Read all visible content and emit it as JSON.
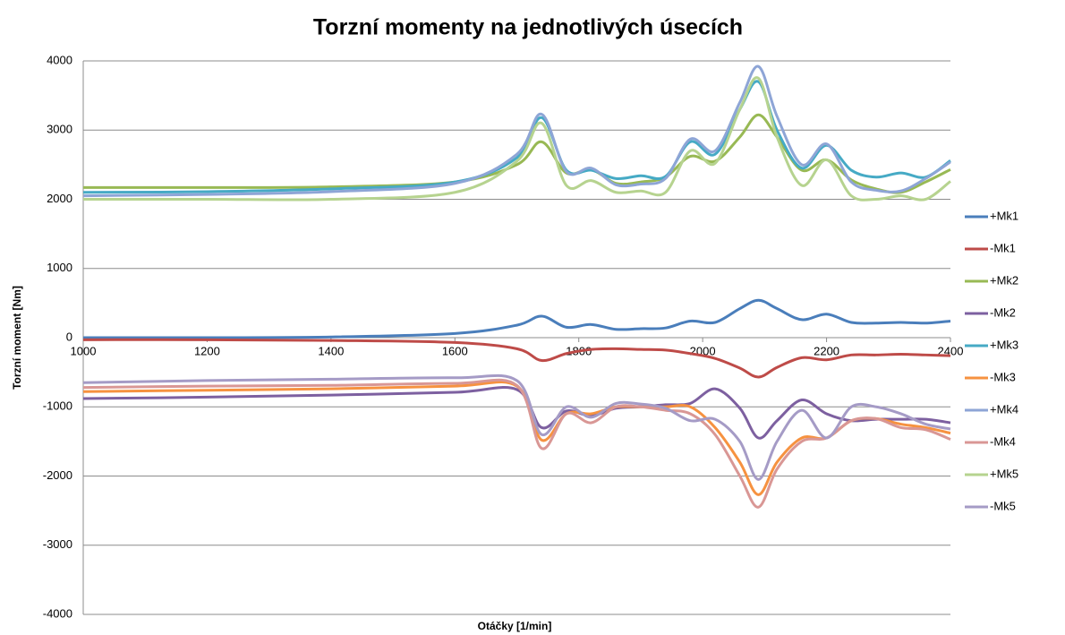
{
  "chart_data": {
    "type": "line",
    "title": "Torzní momenty na jednotlivých úsecích",
    "x_label": "Otáčky [1/min]",
    "y_label": "Torzní moment [Nm]",
    "x": [
      1000,
      1200,
      1400,
      1600,
      1700,
      1740,
      1780,
      1820,
      1860,
      1900,
      1940,
      1980,
      2020,
      2060,
      2090,
      2120,
      2160,
      2200,
      2240,
      2280,
      2320,
      2360,
      2400
    ],
    "xlim": [
      1000,
      2400
    ],
    "xticks": [
      1000,
      1200,
      1400,
      1600,
      1800,
      2000,
      2200,
      2400
    ],
    "ylim": [
      -4000,
      4000
    ],
    "yticks": [
      -4000,
      -3000,
      -2000,
      -1000,
      0,
      1000,
      2000,
      3000,
      4000
    ],
    "grid": true,
    "legend": "right",
    "series": [
      {
        "name": "+Mk1",
        "color": "#4a7ebb",
        "values": [
          0,
          0,
          10,
          60,
          180,
          310,
          150,
          190,
          120,
          130,
          140,
          240,
          220,
          420,
          540,
          420,
          260,
          340,
          220,
          210,
          220,
          210,
          240
        ]
      },
      {
        "name": "-Mk1",
        "color": "#be4b48",
        "values": [
          -30,
          -30,
          -40,
          -70,
          -160,
          -330,
          -230,
          -170,
          -160,
          -170,
          -180,
          -230,
          -300,
          -440,
          -570,
          -430,
          -290,
          -320,
          -250,
          -250,
          -240,
          -250,
          -260
        ]
      },
      {
        "name": "+Mk2",
        "color": "#98b954",
        "values": [
          2170,
          2170,
          2180,
          2250,
          2500,
          2830,
          2380,
          2430,
          2230,
          2250,
          2320,
          2620,
          2550,
          2900,
          3220,
          2900,
          2420,
          2570,
          2280,
          2150,
          2100,
          2250,
          2430
        ]
      },
      {
        "name": "-Mk2",
        "color": "#7d60a0",
        "values": [
          -880,
          -860,
          -830,
          -790,
          -750,
          -1300,
          -1060,
          -1130,
          -1020,
          -1000,
          -970,
          -950,
          -740,
          -1020,
          -1450,
          -1200,
          -900,
          -1100,
          -1200,
          -1180,
          -1180,
          -1180,
          -1230
        ]
      },
      {
        "name": "+Mk3",
        "color": "#46aac5",
        "values": [
          2100,
          2110,
          2150,
          2250,
          2600,
          3180,
          2420,
          2420,
          2300,
          2340,
          2330,
          2830,
          2650,
          3300,
          3700,
          3000,
          2450,
          2780,
          2420,
          2320,
          2380,
          2320,
          2560
        ]
      },
      {
        "name": "-Mk3",
        "color": "#f69240",
        "values": [
          -780,
          -760,
          -740,
          -700,
          -700,
          -1480,
          -1100,
          -1100,
          -1000,
          -1000,
          -1000,
          -1000,
          -1300,
          -1800,
          -2270,
          -1800,
          -1450,
          -1450,
          -1200,
          -1170,
          -1250,
          -1300,
          -1380
        ]
      },
      {
        "name": "+Mk4",
        "color": "#8ea5d6",
        "values": [
          2050,
          2070,
          2110,
          2230,
          2650,
          3230,
          2400,
          2450,
          2210,
          2220,
          2300,
          2870,
          2700,
          3400,
          3920,
          3200,
          2500,
          2800,
          2250,
          2130,
          2120,
          2300,
          2540
        ]
      },
      {
        "name": "-Mk4",
        "color": "#d99795",
        "values": [
          -720,
          -700,
          -690,
          -660,
          -690,
          -1600,
          -1100,
          -1230,
          -1000,
          -1000,
          -1050,
          -1100,
          -1400,
          -2000,
          -2450,
          -1900,
          -1500,
          -1450,
          -1200,
          -1170,
          -1300,
          -1330,
          -1470
        ]
      },
      {
        "name": "+Mk5",
        "color": "#b6d38f",
        "values": [
          2000,
          2000,
          2000,
          2100,
          2550,
          3100,
          2200,
          2270,
          2100,
          2120,
          2100,
          2700,
          2520,
          3300,
          3750,
          2900,
          2200,
          2570,
          2050,
          2000,
          2050,
          2000,
          2260
        ]
      },
      {
        "name": "-Mk5",
        "color": "#a59bc6",
        "values": [
          -650,
          -620,
          -600,
          -580,
          -620,
          -1400,
          -1000,
          -1150,
          -950,
          -960,
          -1020,
          -1200,
          -1180,
          -1500,
          -2050,
          -1500,
          -1050,
          -1450,
          -1000,
          -1000,
          -1100,
          -1250,
          -1320
        ]
      }
    ]
  }
}
